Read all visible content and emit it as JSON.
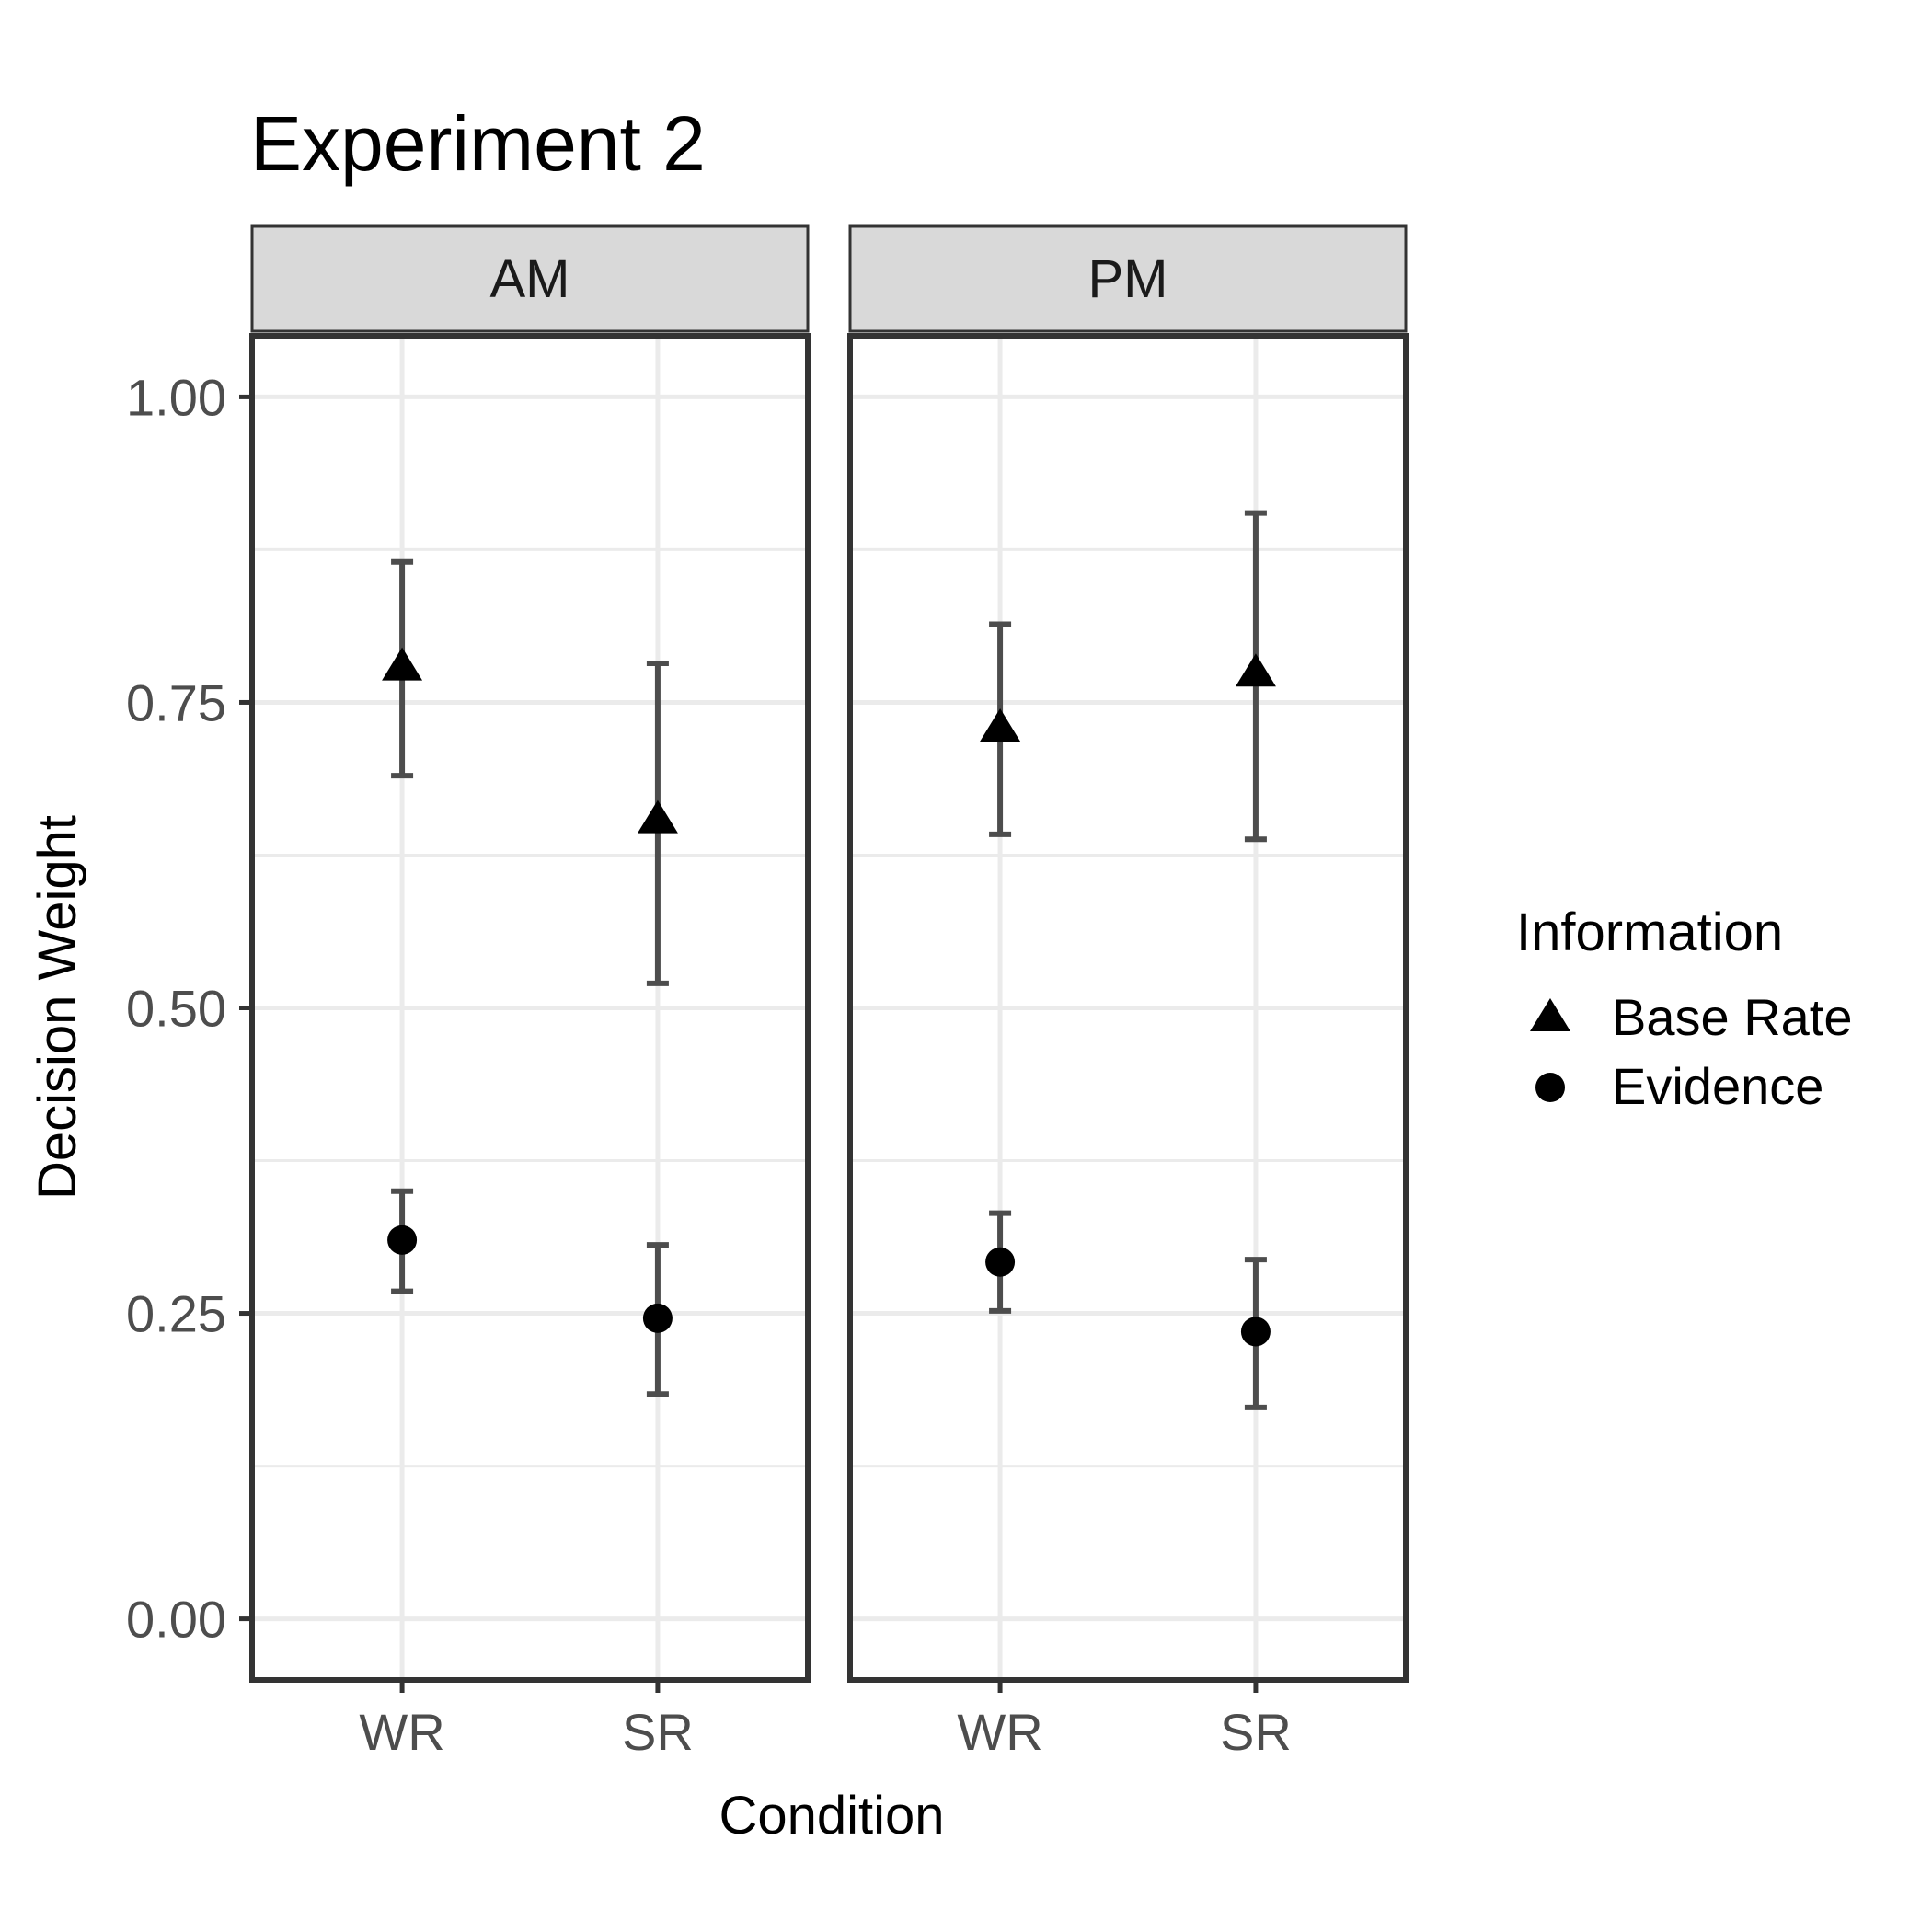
{
  "chart_data": {
    "type": "scatter",
    "title": "Experiment 2",
    "xlabel": "Condition",
    "ylabel": "Decision Weight",
    "ylim": [
      -0.05,
      1.05
    ],
    "yticks": [
      "0.00",
      "0.25",
      "0.50",
      "0.75",
      "1.00"
    ],
    "ytick_values": [
      0,
      0.25,
      0.5,
      0.75,
      1.0
    ],
    "categories": [
      "WR",
      "SR"
    ],
    "grid": true,
    "error_bars": true,
    "legend": {
      "title": "Information",
      "position": "right",
      "entries": [
        {
          "label": "Base Rate",
          "shape": "triangle"
        },
        {
          "label": "Evidence",
          "shape": "circle"
        }
      ]
    },
    "panels": [
      {
        "label": "AM",
        "series": [
          {
            "name": "Base Rate",
            "shape": "triangle",
            "values": [
              0.78,
              0.655
            ],
            "lower": [
              0.69,
              0.52
            ],
            "upper": [
              0.865,
              0.782
            ]
          },
          {
            "name": "Evidence",
            "shape": "circle",
            "values": [
              0.31,
              0.246
            ],
            "lower": [
              0.268,
              0.184
            ],
            "upper": [
              0.35,
              0.306
            ]
          }
        ]
      },
      {
        "label": "PM",
        "series": [
          {
            "name": "Base Rate",
            "shape": "triangle",
            "values": [
              0.73,
              0.775
            ],
            "lower": [
              0.642,
              0.638
            ],
            "upper": [
              0.814,
              0.905
            ]
          },
          {
            "name": "Evidence",
            "shape": "circle",
            "values": [
              0.292,
              0.235
            ],
            "lower": [
              0.252,
              0.173
            ],
            "upper": [
              0.332,
              0.294
            ]
          }
        ]
      }
    ],
    "colors": {
      "marker": "#000000",
      "errorbar": "#4d4d4d",
      "grid": "#ebebeb",
      "panel_border": "#333333",
      "strip_fill": "#d9d9d9"
    }
  }
}
